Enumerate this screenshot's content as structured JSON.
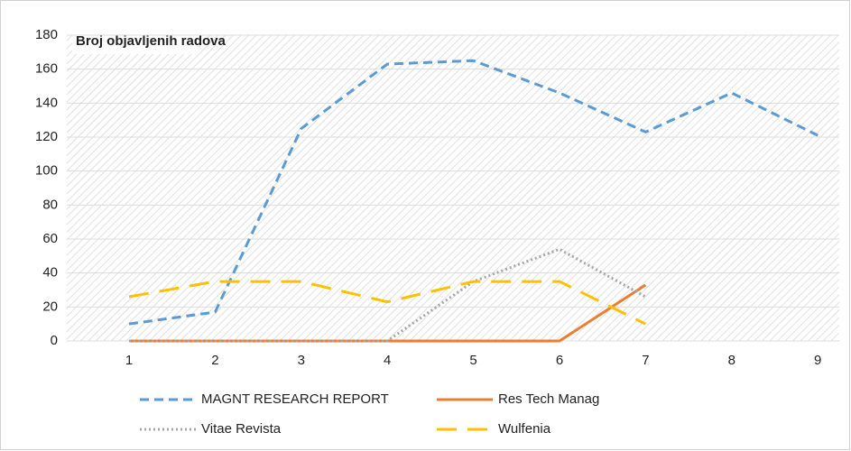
{
  "chart_data": {
    "type": "line",
    "title": "Broj objavljenih radova",
    "categories": [
      "1",
      "2",
      "3",
      "4",
      "5",
      "6",
      "7",
      "8",
      "9"
    ],
    "series": [
      {
        "name": "MAGNT RESEARCH REPORT",
        "color": "#5b9bd5",
        "dash": "dashed",
        "values": [
          10,
          17,
          125,
          163,
          165,
          146,
          123,
          146,
          121
        ]
      },
      {
        "name": "Res Tech Manag",
        "color": "#ed7d31",
        "dash": "solid",
        "values": [
          0,
          0,
          0,
          0,
          0,
          0,
          33,
          null,
          null
        ]
      },
      {
        "name": "Vitae Revista",
        "color": "#a5a5a5",
        "dash": "dotted",
        "values": [
          0,
          0,
          0,
          0,
          35,
          54,
          26,
          null,
          null
        ]
      },
      {
        "name": "Wulfenia",
        "color": "#ffc000",
        "dash": "longdash",
        "values": [
          26,
          35,
          35,
          23,
          35,
          35,
          10,
          null,
          null
        ]
      }
    ],
    "ylim": [
      0,
      180
    ],
    "yticks": [
      0,
      20,
      40,
      60,
      80,
      100,
      120,
      140,
      160,
      180
    ],
    "grid": true
  }
}
